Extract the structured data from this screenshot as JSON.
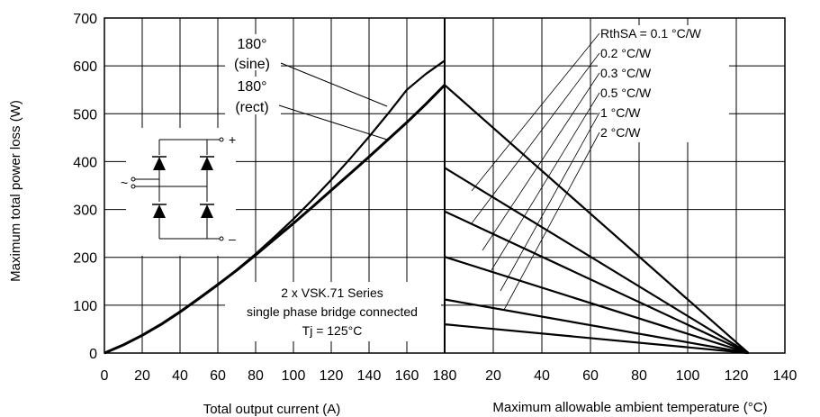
{
  "chart_data": [
    {
      "type": "line",
      "panel": "left",
      "xlabel": "Total output current (A)",
      "ylabel": "Maximum total power loss (W)",
      "xlim": [
        0,
        180
      ],
      "ylim": [
        0,
        700
      ],
      "x_ticks": [
        "0",
        "20",
        "40",
        "60",
        "80",
        "100",
        "120",
        "140",
        "160",
        "180"
      ],
      "y_ticks": [
        "0",
        "100",
        "200",
        "300",
        "400",
        "500",
        "600",
        "700"
      ],
      "grid": true,
      "x": [
        0,
        10,
        20,
        30,
        40,
        50,
        60,
        70,
        80,
        90,
        100,
        110,
        120,
        130,
        140,
        150,
        160,
        170,
        180
      ],
      "series": [
        {
          "label_lines": [
            "180°",
            "(sine)"
          ],
          "values": [
            0,
            17,
            37,
            59,
            85,
            113,
            142,
            174,
            207,
            243,
            280,
            320,
            362,
            406,
            452,
            500,
            550,
            583,
            611
          ]
        },
        {
          "label_lines": [
            "180°",
            "(rect)"
          ],
          "values": [
            0,
            17,
            37,
            60,
            86,
            114,
            143,
            173,
            205,
            238,
            271,
            305,
            340,
            375,
            410,
            446,
            482,
            520,
            560
          ]
        }
      ],
      "annotation_lines": [
        "2 x VSK.71 Series",
        "single phase bridge connected",
        "Tj = 125°C"
      ],
      "schematic_labels": {
        "plus": "+",
        "minus": "–",
        "ac": "~"
      }
    },
    {
      "type": "line",
      "panel": "right",
      "xlabel": "Maximum allowable ambient temperature (°C)",
      "xlim": [
        0,
        140
      ],
      "x_ticks": [
        "20",
        "40",
        "60",
        "80",
        "100",
        "120",
        "140"
      ],
      "grid": true,
      "end_x": 125,
      "series": [
        {
          "label": "RthSA = 0.1 °C/W",
          "start_y": 560
        },
        {
          "label": "0.2 °C/W",
          "start_y": 387
        },
        {
          "label": "0.3 °C/W",
          "start_y": 296
        },
        {
          "label": "0.5 °C/W",
          "start_y": 201
        },
        {
          "label": "1 °C/W",
          "start_y": 112
        },
        {
          "label": "2 °C/W",
          "start_y": 60
        }
      ]
    }
  ]
}
